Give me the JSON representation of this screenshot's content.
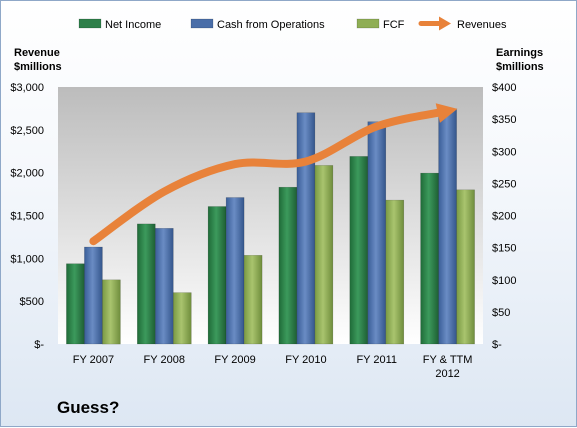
{
  "chart_data": {
    "type": "bar",
    "categories": [
      "FY 2007",
      "FY 2008",
      "FY 2009",
      "FY 2010",
      "FY 2011",
      "FY & TTM 2012"
    ],
    "series": [
      {
        "name": "Net Income",
        "axis": "right",
        "color": "#2e7f4a",
        "values": [
          125,
          187,
          214,
          244,
          292,
          266
        ]
      },
      {
        "name": "Cash from Operations",
        "axis": "right",
        "color": "#4a6ea8",
        "values": [
          151,
          180,
          228,
          360,
          346,
          366
        ]
      },
      {
        "name": "FCF",
        "axis": "right",
        "color": "#8fae55",
        "values": [
          100,
          80,
          138,
          278,
          224,
          240
        ]
      }
    ],
    "line_series": {
      "name": "Revenues",
      "axis": "left",
      "color": "#e8823a",
      "values": [
        1200,
        1780,
        2100,
        2130,
        2540,
        2720
      ]
    },
    "left_axis": {
      "title_lines": [
        "Revenue",
        "$millions"
      ],
      "ylim": [
        0,
        3000
      ],
      "ticks": [
        "$-",
        "$500",
        "$1,000",
        "$1,500",
        "$2,000",
        "$2,500",
        "$3,000"
      ]
    },
    "right_axis": {
      "title_lines": [
        "Earnings",
        "$millions"
      ],
      "ylim": [
        0,
        400
      ],
      "ticks": [
        "$-",
        "$50",
        "$100",
        "$150",
        "$200",
        "$250",
        "$300",
        "$350",
        "$400"
      ]
    },
    "category_labels": [
      [
        "FY 2007"
      ],
      [
        "FY 2008"
      ],
      [
        "FY 2009"
      ],
      [
        "FY 2010"
      ],
      [
        "FY 2011"
      ],
      [
        "FY & TTM",
        "2012"
      ]
    ],
    "legend_position": "top",
    "grid": false
  },
  "footer": {
    "text": "Guess?"
  },
  "colors": {
    "plot_top": "#bdbdbd",
    "plot_bottom": "#ffffff"
  }
}
